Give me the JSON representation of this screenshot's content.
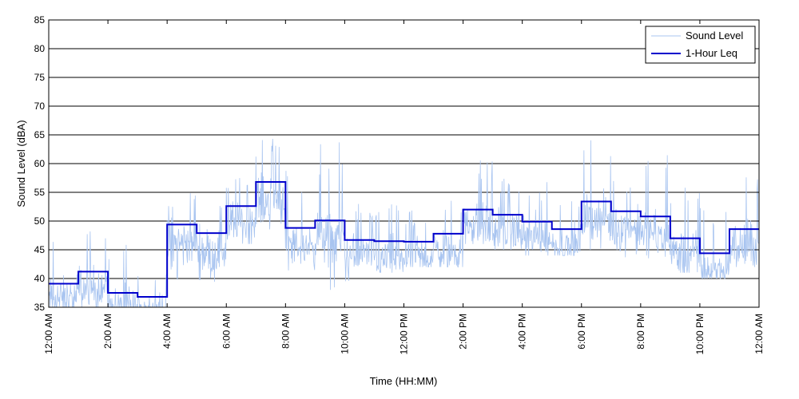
{
  "chart_data": {
    "type": "line",
    "xlabel": "Time (HH:MM)",
    "ylabel": "Sound Level (dBA)",
    "ylim": [
      35,
      85
    ],
    "yticks": [
      35,
      40,
      45,
      50,
      55,
      60,
      65,
      70,
      75,
      80,
      85
    ],
    "xlim_hours": [
      0,
      24
    ],
    "xticks": [
      {
        "hour": 0,
        "label": "12:00 AM"
      },
      {
        "hour": 2,
        "label": "2:00 AM"
      },
      {
        "hour": 4,
        "label": "4:00 AM"
      },
      {
        "hour": 6,
        "label": "6:00 AM"
      },
      {
        "hour": 8,
        "label": "8:00 AM"
      },
      {
        "hour": 10,
        "label": "10:00 AM"
      },
      {
        "hour": 12,
        "label": "12:00 PM"
      },
      {
        "hour": 14,
        "label": "2:00 PM"
      },
      {
        "hour": 16,
        "label": "4:00 PM"
      },
      {
        "hour": 18,
        "label": "6:00 PM"
      },
      {
        "hour": 20,
        "label": "8:00 PM"
      },
      {
        "hour": 22,
        "label": "10:00 PM"
      },
      {
        "hour": 24,
        "label": "12:00 AM"
      }
    ],
    "grid": "horizontal",
    "legend_position": "top-right",
    "series": [
      {
        "name": "Sound Level",
        "color": "#a8c4f0",
        "style": "thin noisy line",
        "hourly_envelope": [
          {
            "hour": 0,
            "min": 35,
            "max": 49
          },
          {
            "hour": 1,
            "min": 35,
            "max": 49
          },
          {
            "hour": 2,
            "min": 35,
            "max": 46
          },
          {
            "hour": 3,
            "min": 35,
            "max": 41
          },
          {
            "hour": 4,
            "min": 35,
            "max": 55
          },
          {
            "hour": 5,
            "min": 36,
            "max": 53
          },
          {
            "hour": 6,
            "min": 46,
            "max": 58
          },
          {
            "hour": 7,
            "min": 45,
            "max": 65
          },
          {
            "hour": 8,
            "min": 41,
            "max": 59
          },
          {
            "hour": 9,
            "min": 38,
            "max": 65
          },
          {
            "hour": 10,
            "min": 39,
            "max": 53
          },
          {
            "hour": 11,
            "min": 41,
            "max": 53
          },
          {
            "hour": 12,
            "min": 42,
            "max": 52
          },
          {
            "hour": 13,
            "min": 42,
            "max": 54
          },
          {
            "hour": 14,
            "min": 46,
            "max": 61
          },
          {
            "hour": 15,
            "min": 45,
            "max": 58
          },
          {
            "hour": 16,
            "min": 44,
            "max": 57
          },
          {
            "hour": 17,
            "min": 44,
            "max": 56
          },
          {
            "hour": 18,
            "min": 44,
            "max": 67
          },
          {
            "hour": 19,
            "min": 43,
            "max": 57
          },
          {
            "hour": 20,
            "min": 42,
            "max": 62
          },
          {
            "hour": 21,
            "min": 41,
            "max": 56
          },
          {
            "hour": 22,
            "min": 40,
            "max": 53
          },
          {
            "hour": 23,
            "min": 42,
            "max": 61
          }
        ]
      },
      {
        "name": "1-Hour Leq",
        "color": "#0000cc",
        "style": "step",
        "hours": [
          0,
          1,
          2,
          3,
          4,
          5,
          6,
          7,
          8,
          9,
          10,
          11,
          12,
          13,
          14,
          15,
          16,
          17,
          18,
          19,
          20,
          21,
          22,
          23
        ],
        "values": [
          39.1,
          41.2,
          37.5,
          36.8,
          49.4,
          47.9,
          52.6,
          56.8,
          48.8,
          50.1,
          46.7,
          46.5,
          46.4,
          47.8,
          52.0,
          51.1,
          49.9,
          48.6,
          53.4,
          51.7,
          50.8,
          47.0,
          44.4,
          48.6
        ]
      }
    ]
  }
}
